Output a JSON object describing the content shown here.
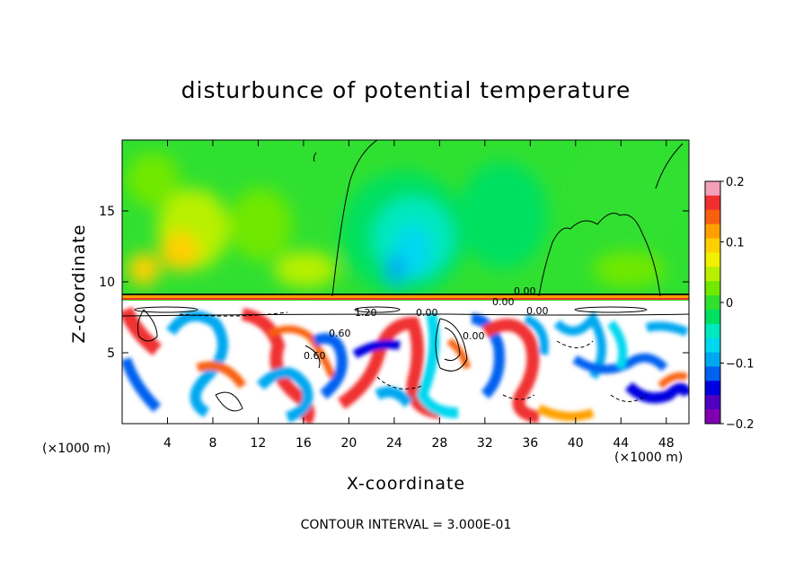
{
  "chart_data": {
    "type": "heatmap",
    "title": "disturbunce of potential temperature",
    "xlabel": "X-coordinate",
    "ylabel": "Z-coordinate",
    "x_unit": "(×1000 m)",
    "xlim": [
      0,
      50
    ],
    "ylim": [
      0,
      20
    ],
    "x_ticks": [
      4,
      8,
      12,
      16,
      20,
      24,
      28,
      32,
      36,
      40,
      44,
      48
    ],
    "y_ticks": [
      5,
      10,
      15
    ],
    "colorbar": {
      "min": -0.2,
      "max": 0.2,
      "ticks": [
        0.2,
        0.1,
        0,
        -0.1,
        -0.2
      ],
      "tick_labels": [
        "0.2",
        "0.1",
        "0",
        "−0.1",
        "−0.2"
      ],
      "colors": [
        "#f4a0b8",
        "#f03030",
        "#f86010",
        "#ffa000",
        "#ffd000",
        "#f0f000",
        "#b8f000",
        "#70e800",
        "#30e030",
        "#00e060",
        "#00e8c0",
        "#00d8f0",
        "#00a8f0",
        "#0060f0",
        "#0000e0",
        "#5000c0",
        "#8000b0"
      ]
    },
    "contour_labels": [
      "0.00",
      "0.00",
      "0.00",
      "1.20",
      "0.60",
      "0.60",
      "0.00",
      "0.00"
    ],
    "contour_interval_note": "CONTOUR INTERVAL = 3.000E-01"
  }
}
